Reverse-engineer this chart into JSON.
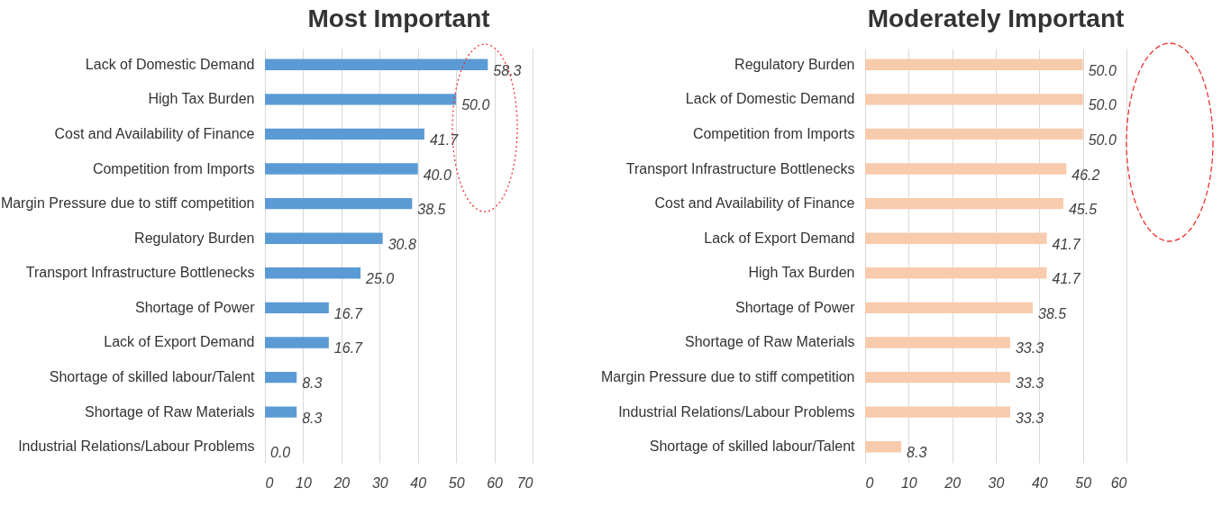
{
  "chart_data": [
    {
      "type": "bar",
      "orientation": "horizontal",
      "title": "Most Important",
      "categories": [
        "Lack of Domestic Demand",
        "High Tax Burden",
        "Cost and Availability of Finance",
        "Competition from Imports",
        "Margin Pressure due to stiff competition",
        "Regulatory Burden",
        "Transport Infrastructure Bottlenecks",
        "Shortage of Power",
        "Lack of Export Demand",
        "Shortage of skilled labour/Talent",
        "Shortage of Raw Materials",
        "Industrial Relations/Labour Problems"
      ],
      "values": [
        58.3,
        50.0,
        41.7,
        40.0,
        38.5,
        30.8,
        25.0,
        16.7,
        16.7,
        8.3,
        8.3,
        0.0
      ],
      "value_labels": [
        "58.3",
        "50.0",
        "41.7",
        "40.0",
        "38.5",
        "30.8",
        "25.0",
        "16.7",
        "16.7",
        "8.3",
        "8.3",
        "0.0"
      ],
      "color": "#5b9bd5",
      "xlim": [
        0,
        70
      ],
      "xticks": [
        0,
        10,
        20,
        30,
        40,
        50,
        60,
        70
      ],
      "grid": "x"
    },
    {
      "type": "bar",
      "orientation": "horizontal",
      "title": "Moderately Important",
      "categories": [
        "Regulatory Burden",
        "Lack of Domestic Demand",
        "Competition from Imports",
        "Transport Infrastructure Bottlenecks",
        "Cost and Availability of Finance",
        "Lack of Export Demand",
        "High Tax Burden",
        "Shortage of Power",
        "Shortage of Raw Materials",
        "Margin Pressure due to stiff competition",
        "Industrial Relations/Labour Problems",
        "Shortage of skilled labour/Talent"
      ],
      "values": [
        50.0,
        50.0,
        50.0,
        46.2,
        45.5,
        41.7,
        41.7,
        38.5,
        33.3,
        33.3,
        33.3,
        8.3
      ],
      "value_labels": [
        "50.0",
        "50.0",
        "50.0",
        "46.2",
        "45.5",
        "41.7",
        "41.7",
        "38.5",
        "33.3",
        "33.3",
        "33.3",
        "8.3"
      ],
      "color": "#f8cbad",
      "xlim": [
        0,
        60
      ],
      "xticks": [
        0,
        10,
        20,
        30,
        40,
        50,
        60
      ],
      "grid": "x"
    }
  ]
}
